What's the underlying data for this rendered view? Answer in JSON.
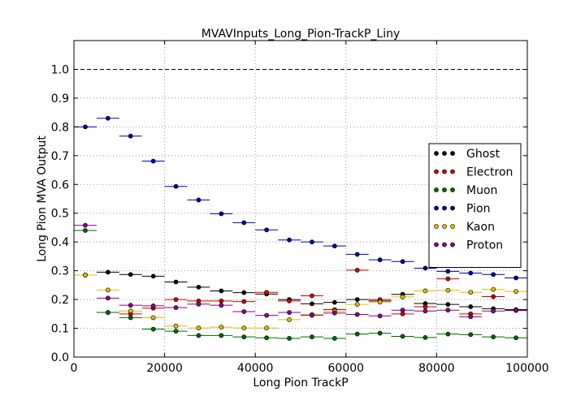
{
  "chart_data": {
    "type": "scatter",
    "title": "MVAVInputs_Long_Pion-TrackP_Liny",
    "xlabel": "Long Pion TrackP",
    "ylabel": "Long Pion MVA Output",
    "xlim": [
      0,
      100000
    ],
    "ylim": [
      0.0,
      1.1
    ],
    "x_ticks": [
      0,
      20000,
      40000,
      60000,
      80000,
      100000
    ],
    "x_tick_labels": [
      "0",
      "20000",
      "40000",
      "60000",
      "80000",
      "100000"
    ],
    "y_ticks": [
      0.0,
      0.1,
      0.2,
      0.3,
      0.4,
      0.5,
      0.6,
      0.7,
      0.8,
      0.9,
      1.0
    ],
    "y_tick_labels": [
      "0.0",
      "0.1",
      "0.2",
      "0.3",
      "0.4",
      "0.5",
      "0.6",
      "0.7",
      "0.8",
      "0.9",
      "1.0"
    ],
    "grid": true,
    "reference_line_y": 1.0,
    "legend_position": "right",
    "x": [
      2500,
      7500,
      12500,
      17500,
      22500,
      27500,
      32500,
      37500,
      42500,
      47500,
      52500,
      57500,
      62500,
      67500,
      72500,
      77500,
      82500,
      87500,
      92500,
      97500
    ],
    "x_half_width": 2500,
    "series": [
      {
        "name": "Ghost",
        "color": "#000000",
        "values": [
          0.285,
          0.295,
          0.287,
          0.281,
          0.261,
          0.243,
          0.23,
          0.224,
          0.219,
          0.2,
          0.185,
          0.19,
          0.2,
          0.195,
          0.218,
          0.186,
          0.183,
          0.175,
          0.168,
          0.165
        ]
      },
      {
        "name": "Electron",
        "color": "#cc0000",
        "values": [
          0.285,
          0.155,
          0.15,
          0.17,
          0.2,
          0.195,
          0.195,
          0.193,
          0.225,
          0.195,
          0.213,
          0.165,
          0.302,
          0.2,
          0.15,
          0.175,
          0.272,
          0.15,
          0.21,
          0.162
        ]
      },
      {
        "name": "Muon",
        "color": "#006600",
        "values": [
          0.44,
          0.155,
          0.137,
          0.097,
          0.09,
          0.075,
          0.075,
          0.07,
          0.067,
          0.065,
          0.07,
          0.065,
          0.08,
          0.083,
          0.072,
          0.068,
          0.08,
          0.078,
          0.07,
          0.067
        ]
      },
      {
        "name": "Pion",
        "color": "#0000aa",
        "values": [
          0.8,
          0.83,
          0.768,
          0.681,
          0.593,
          0.546,
          0.498,
          0.467,
          0.442,
          0.407,
          0.4,
          0.386,
          0.357,
          0.338,
          0.332,
          0.309,
          0.298,
          0.292,
          0.287,
          0.275
        ]
      },
      {
        "name": "Kaon",
        "color": "#ddbb00",
        "values": [
          0.285,
          0.233,
          0.16,
          0.137,
          0.108,
          0.101,
          0.104,
          0.101,
          0.101,
          0.13,
          0.148,
          0.159,
          0.183,
          0.191,
          0.209,
          0.23,
          0.232,
          0.225,
          0.235,
          0.228
        ]
      },
      {
        "name": "Proton",
        "color": "#880088",
        "values": [
          0.458,
          0.205,
          0.18,
          0.178,
          0.172,
          0.184,
          0.18,
          0.158,
          0.145,
          0.155,
          0.145,
          0.153,
          0.148,
          0.143,
          0.163,
          0.16,
          0.163,
          0.14,
          0.16,
          0.163
        ]
      }
    ]
  }
}
